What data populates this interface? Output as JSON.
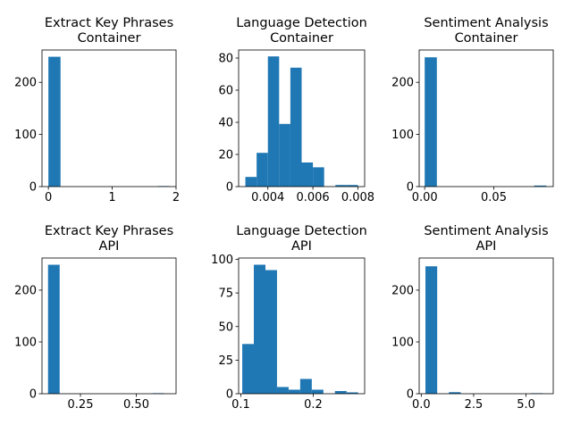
{
  "bar_color": "#1f77b4",
  "chart_data": [
    {
      "type": "bar",
      "title_lines": [
        "Extract Key Phrases",
        "Container"
      ],
      "xlim": [
        -0.1,
        2.0
      ],
      "ylim": [
        0,
        262
      ],
      "xticks": [
        0,
        1,
        2
      ],
      "xtick_labels": [
        "0",
        "1",
        "2"
      ],
      "yticks": [
        0,
        100,
        200
      ],
      "ytick_labels": [
        "0",
        "100",
        "200"
      ],
      "bin_edges": [
        0.0,
        0.19,
        0.38,
        0.57,
        0.76,
        0.95,
        1.14,
        1.33,
        1.52,
        1.71,
        1.9
      ],
      "counts": [
        249,
        0,
        0,
        0,
        0,
        0,
        0,
        0,
        0,
        1
      ]
    },
    {
      "type": "bar",
      "title_lines": [
        "Language Detection",
        "Container"
      ],
      "xlim": [
        0.0027,
        0.0083
      ],
      "ylim": [
        0,
        85
      ],
      "xticks": [
        0.004,
        0.006,
        0.008
      ],
      "xtick_labels": [
        "0.004",
        "0.006",
        "0.008"
      ],
      "yticks": [
        0,
        20,
        40,
        60,
        80
      ],
      "ytick_labels": [
        "0",
        "20",
        "40",
        "60",
        "80"
      ],
      "bin_edges": [
        0.003,
        0.0035,
        0.004,
        0.0045,
        0.005,
        0.0055,
        0.006,
        0.0065,
        0.007,
        0.0075,
        0.008
      ],
      "counts": [
        6,
        21,
        81,
        39,
        74,
        15,
        12,
        0,
        1,
        1
      ]
    },
    {
      "type": "bar",
      "title_lines": [
        "Sentiment Analysis",
        "Container"
      ],
      "xlim": [
        -0.004,
        0.093
      ],
      "ylim": [
        0,
        262
      ],
      "xticks": [
        0.0,
        0.05
      ],
      "xtick_labels": [
        "0.00",
        "0.05"
      ],
      "yticks": [
        0,
        100,
        200
      ],
      "ytick_labels": [
        "0",
        "100",
        "200"
      ],
      "bin_edges": [
        0.0,
        0.0088,
        0.0176,
        0.0264,
        0.0352,
        0.044,
        0.0528,
        0.0616,
        0.0704,
        0.0792,
        0.088
      ],
      "counts": [
        248,
        0,
        0,
        0,
        0,
        0,
        0,
        0,
        0,
        2
      ]
    },
    {
      "type": "bar",
      "title_lines": [
        "Extract Key Phrases",
        "API"
      ],
      "xlim": [
        0.078,
        0.678
      ],
      "ylim": [
        0,
        262
      ],
      "xticks": [
        0.25,
        0.5
      ],
      "xtick_labels": [
        "0.25",
        "0.50"
      ],
      "yticks": [
        0,
        100,
        200
      ],
      "ytick_labels": [
        "0",
        "100",
        "200"
      ],
      "bin_edges": [
        0.105,
        0.157,
        0.209,
        0.261,
        0.313,
        0.365,
        0.417,
        0.469,
        0.521,
        0.573,
        0.625
      ],
      "counts": [
        249,
        0,
        0,
        0,
        0,
        0,
        0,
        0,
        0,
        1
      ]
    },
    {
      "type": "bar",
      "title_lines": [
        "Language Detection",
        "API"
      ],
      "xlim": [
        0.097,
        0.271
      ],
      "ylim": [
        0,
        101
      ],
      "xticks": [
        0.1,
        0.2
      ],
      "xtick_labels": [
        "0.1",
        "0.2"
      ],
      "yticks": [
        0,
        25,
        50,
        75,
        100
      ],
      "ytick_labels": [
        "0",
        "25",
        "50",
        "75",
        "100"
      ],
      "bin_edges": [
        0.102,
        0.118,
        0.134,
        0.15,
        0.166,
        0.182,
        0.198,
        0.214,
        0.23,
        0.246,
        0.262
      ],
      "counts": [
        37,
        96,
        92,
        5,
        3,
        11,
        3,
        0,
        2,
        1
      ]
    },
    {
      "type": "bar",
      "title_lines": [
        "Sentiment Analysis",
        "API"
      ],
      "xlim": [
        -0.1,
        6.3
      ],
      "ylim": [
        0,
        262
      ],
      "xticks": [
        0.0,
        2.5,
        5.0
      ],
      "xtick_labels": [
        "0.0",
        "2.5",
        "5.0"
      ],
      "yticks": [
        0,
        100,
        200
      ],
      "ytick_labels": [
        "0",
        "100",
        "200"
      ],
      "bin_edges": [
        0.2,
        0.76,
        1.32,
        1.88,
        2.44,
        3.0,
        3.56,
        4.12,
        4.68,
        5.24,
        5.8
      ],
      "counts": [
        246,
        0,
        3,
        0,
        0,
        0,
        0,
        0,
        0,
        1
      ]
    }
  ]
}
